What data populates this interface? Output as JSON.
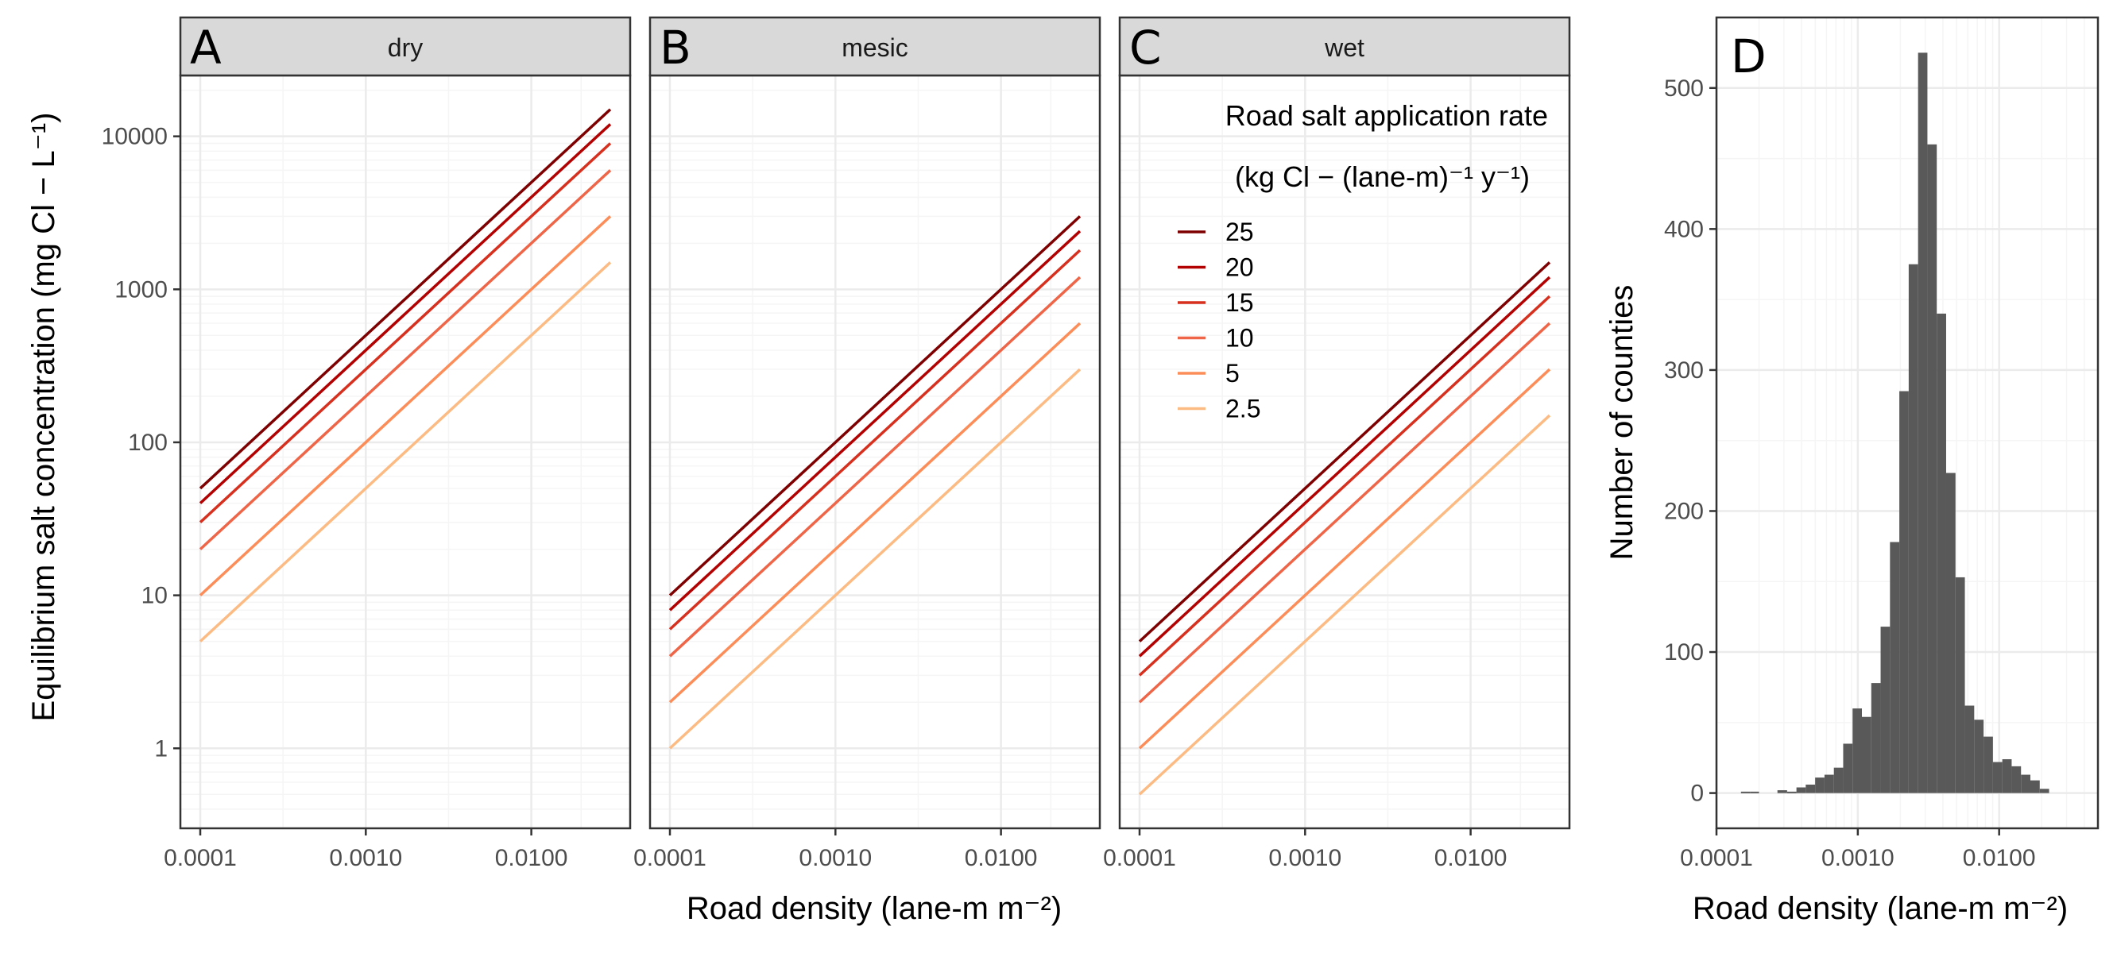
{
  "chart_data": [
    {
      "panel": "A",
      "strip": "dry",
      "type": "line",
      "scale": "log-log",
      "xlabel": "Road density (lane-m m⁻²)",
      "ylabel": "Equilibrium salt concentration (mg Cl − L⁻¹)",
      "xlim": [
        0.0001,
        0.03
      ],
      "ylim": [
        0.3,
        25000
      ],
      "xticks": [
        "0.0001",
        "0.0010",
        "0.0100"
      ],
      "yticks": [
        "1",
        "10",
        "100",
        "1000",
        "10000"
      ],
      "x": [
        0.0001,
        0.03
      ],
      "series": [
        {
          "name": "25",
          "values": [
            50,
            15000
          ]
        },
        {
          "name": "20",
          "values": [
            40,
            12000
          ]
        },
        {
          "name": "15",
          "values": [
            30,
            9000
          ]
        },
        {
          "name": "10",
          "values": [
            20,
            6000
          ]
        },
        {
          "name": "5",
          "values": [
            10,
            3000
          ]
        },
        {
          "name": "2.5",
          "values": [
            5,
            1500
          ]
        }
      ],
      "grid": true
    },
    {
      "panel": "B",
      "strip": "mesic",
      "type": "line",
      "scale": "log-log",
      "xlim": [
        0.0001,
        0.03
      ],
      "ylim": [
        0.3,
        25000
      ],
      "xticks": [
        "0.0001",
        "0.0010",
        "0.0100"
      ],
      "x": [
        0.0001,
        0.03
      ],
      "series": [
        {
          "name": "25",
          "values": [
            10,
            3000
          ]
        },
        {
          "name": "20",
          "values": [
            8,
            2400
          ]
        },
        {
          "name": "15",
          "values": [
            6,
            1800
          ]
        },
        {
          "name": "10",
          "values": [
            4,
            1200
          ]
        },
        {
          "name": "5",
          "values": [
            2,
            600
          ]
        },
        {
          "name": "2.5",
          "values": [
            1,
            300
          ]
        }
      ],
      "grid": true
    },
    {
      "panel": "C",
      "strip": "wet",
      "type": "line",
      "scale": "log-log",
      "xlim": [
        0.0001,
        0.03
      ],
      "ylim": [
        0.3,
        25000
      ],
      "xticks": [
        "0.0001",
        "0.0010",
        "0.0100"
      ],
      "x": [
        0.0001,
        0.03
      ],
      "series": [
        {
          "name": "25",
          "values": [
            5,
            1500
          ]
        },
        {
          "name": "20",
          "values": [
            4,
            1200
          ]
        },
        {
          "name": "15",
          "values": [
            3,
            900
          ]
        },
        {
          "name": "10",
          "values": [
            2,
            600
          ]
        },
        {
          "name": "5",
          "values": [
            1,
            300
          ]
        },
        {
          "name": "2.5",
          "values": [
            0.5,
            150
          ]
        }
      ],
      "grid": true,
      "legend": {
        "placement": "top-right",
        "title_line1": "Road salt application rate",
        "title_line2": "(kg Cl −  (lane-m)⁻¹ y⁻¹)"
      }
    },
    {
      "panel": "D",
      "type": "bar",
      "subtype": "histogram",
      "scale": "log-x",
      "xlabel": "Road density (lane-m m⁻²)",
      "ylabel": "Number of counties",
      "xlim": [
        0.0001,
        0.05
      ],
      "ylim": [
        -25,
        550
      ],
      "xticks": [
        "0.0001",
        "0.0010",
        "0.0100"
      ],
      "yticks": [
        "0",
        "100",
        "200",
        "300",
        "400",
        "500"
      ],
      "bins": [
        {
          "x0": 0.000149,
          "x1": 0.000173,
          "count": 1
        },
        {
          "x0": 0.000173,
          "x1": 0.0002,
          "count": 1
        },
        {
          "x0": 0.00027,
          "x1": 0.000316,
          "count": 2
        },
        {
          "x0": 0.000316,
          "x1": 0.000368,
          "count": 1
        },
        {
          "x0": 0.000368,
          "x1": 0.000428,
          "count": 4
        },
        {
          "x0": 0.000428,
          "x1": 0.000499,
          "count": 6
        },
        {
          "x0": 0.000499,
          "x1": 0.000581,
          "count": 11
        },
        {
          "x0": 0.000581,
          "x1": 0.000677,
          "count": 13
        },
        {
          "x0": 0.000677,
          "x1": 0.000788,
          "count": 18
        },
        {
          "x0": 0.000788,
          "x1": 0.000918,
          "count": 35
        },
        {
          "x0": 0.000918,
          "x1": 0.001069,
          "count": 60
        },
        {
          "x0": 0.001069,
          "x1": 0.001245,
          "count": 54
        },
        {
          "x0": 0.001245,
          "x1": 0.00145,
          "count": 78
        },
        {
          "x0": 0.00145,
          "x1": 0.001689,
          "count": 118
        },
        {
          "x0": 0.001689,
          "x1": 0.001967,
          "count": 178
        },
        {
          "x0": 0.001967,
          "x1": 0.002291,
          "count": 285
        },
        {
          "x0": 0.002291,
          "x1": 0.002669,
          "count": 375
        },
        {
          "x0": 0.002669,
          "x1": 0.003108,
          "count": 525
        },
        {
          "x0": 0.003108,
          "x1": 0.00362,
          "count": 460
        },
        {
          "x0": 0.00362,
          "x1": 0.004216,
          "count": 340
        },
        {
          "x0": 0.004216,
          "x1": 0.004911,
          "count": 227
        },
        {
          "x0": 0.004911,
          "x1": 0.00572,
          "count": 153
        },
        {
          "x0": 0.00572,
          "x1": 0.006662,
          "count": 62
        },
        {
          "x0": 0.006662,
          "x1": 0.00776,
          "count": 52
        },
        {
          "x0": 0.00776,
          "x1": 0.009038,
          "count": 40
        },
        {
          "x0": 0.009038,
          "x1": 0.010527,
          "count": 22
        },
        {
          "x0": 0.010527,
          "x1": 0.012261,
          "count": 24
        },
        {
          "x0": 0.012261,
          "x1": 0.014281,
          "count": 19
        },
        {
          "x0": 0.014281,
          "x1": 0.016634,
          "count": 13
        },
        {
          "x0": 0.016634,
          "x1": 0.019374,
          "count": 9
        },
        {
          "x0": 0.019374,
          "x1": 0.022565,
          "count": 3
        }
      ],
      "grid": true
    }
  ],
  "colors": {
    "25": "#7f0000",
    "20": "#b30000",
    "15": "#d7301f",
    "10": "#ef6548",
    "5": "#fc8d59",
    "2.5": "#fdbb84",
    "histogram_fill": "#595959",
    "strip_fill": "#d9d9d9",
    "grid_major": "#ebebeb",
    "grid_minor": "#f5f5f5"
  }
}
